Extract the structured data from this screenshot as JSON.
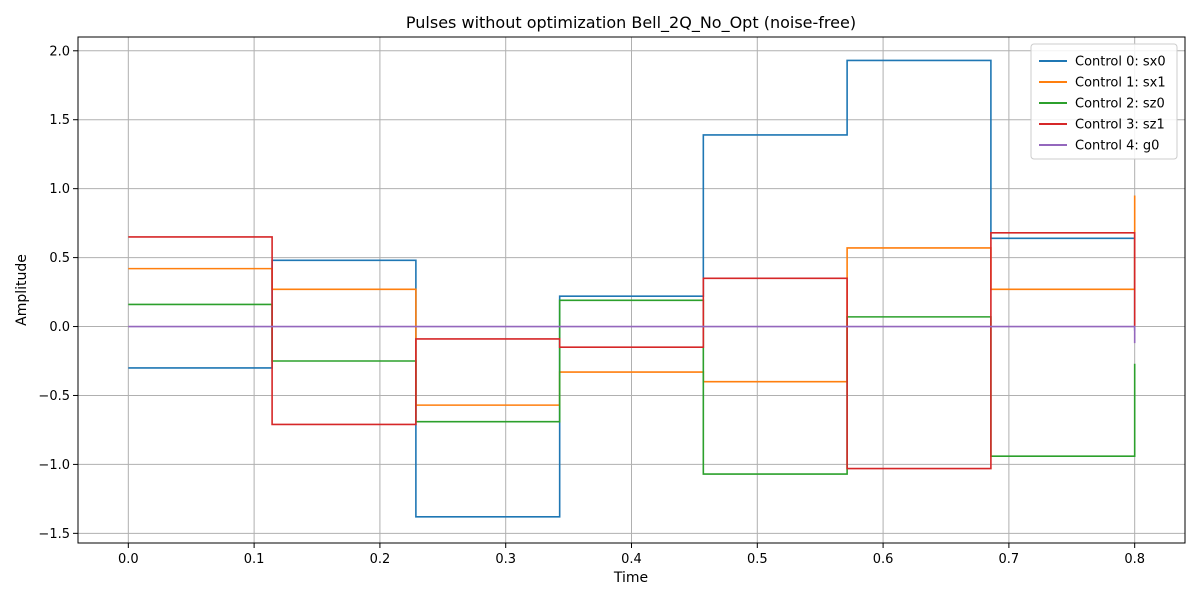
{
  "chart_data": {
    "type": "line",
    "step": "post",
    "title": "Pulses without optimization Bell_2Q_No_Opt (noise-free)",
    "xlabel": "Time",
    "ylabel": "Amplitude",
    "xlim": [
      -0.04,
      0.84
    ],
    "ylim": [
      -1.57,
      2.1
    ],
    "xticks": [
      0.0,
      0.1,
      0.2,
      0.3,
      0.4,
      0.5,
      0.6,
      0.7,
      0.8
    ],
    "xtick_labels": [
      "0.0",
      "0.1",
      "0.2",
      "0.3",
      "0.4",
      "0.5",
      "0.6",
      "0.7",
      "0.8"
    ],
    "yticks": [
      -1.5,
      -1.0,
      -0.5,
      0.0,
      0.5,
      1.0,
      1.5,
      2.0
    ],
    "ytick_labels": [
      "−1.5",
      "−1.0",
      "−0.5",
      "0.0",
      "0.5",
      "1.0",
      "1.5",
      "2.0"
    ],
    "grid": true,
    "legend_position": "top-right",
    "x": [
      0.0,
      0.1143,
      0.2286,
      0.3429,
      0.4571,
      0.5714,
      0.6857,
      0.8
    ],
    "series": [
      {
        "name": "Control 0: sx0",
        "color": "#1f77b4",
        "values": [
          -0.3,
          0.48,
          -1.38,
          0.22,
          1.39,
          1.93,
          0.64,
          -0.03
        ]
      },
      {
        "name": "Control 1: sx1",
        "color": "#ff7f0e",
        "values": [
          0.42,
          0.27,
          -0.57,
          -0.33,
          -0.4,
          0.57,
          0.27,
          0.95
        ]
      },
      {
        "name": "Control 2: sz0",
        "color": "#2ca02c",
        "values": [
          0.16,
          -0.25,
          -0.69,
          0.19,
          -1.07,
          0.07,
          -0.94,
          -0.27
        ]
      },
      {
        "name": "Control 3: sz1",
        "color": "#d62728",
        "values": [
          0.65,
          -0.71,
          -0.09,
          -0.15,
          0.35,
          -1.03,
          0.68,
          0.0
        ]
      },
      {
        "name": "Control 4: g0",
        "color": "#9467bd",
        "values": [
          0.0,
          0.0,
          0.0,
          0.0,
          0.0,
          0.0,
          0.0,
          -0.12
        ]
      }
    ]
  }
}
